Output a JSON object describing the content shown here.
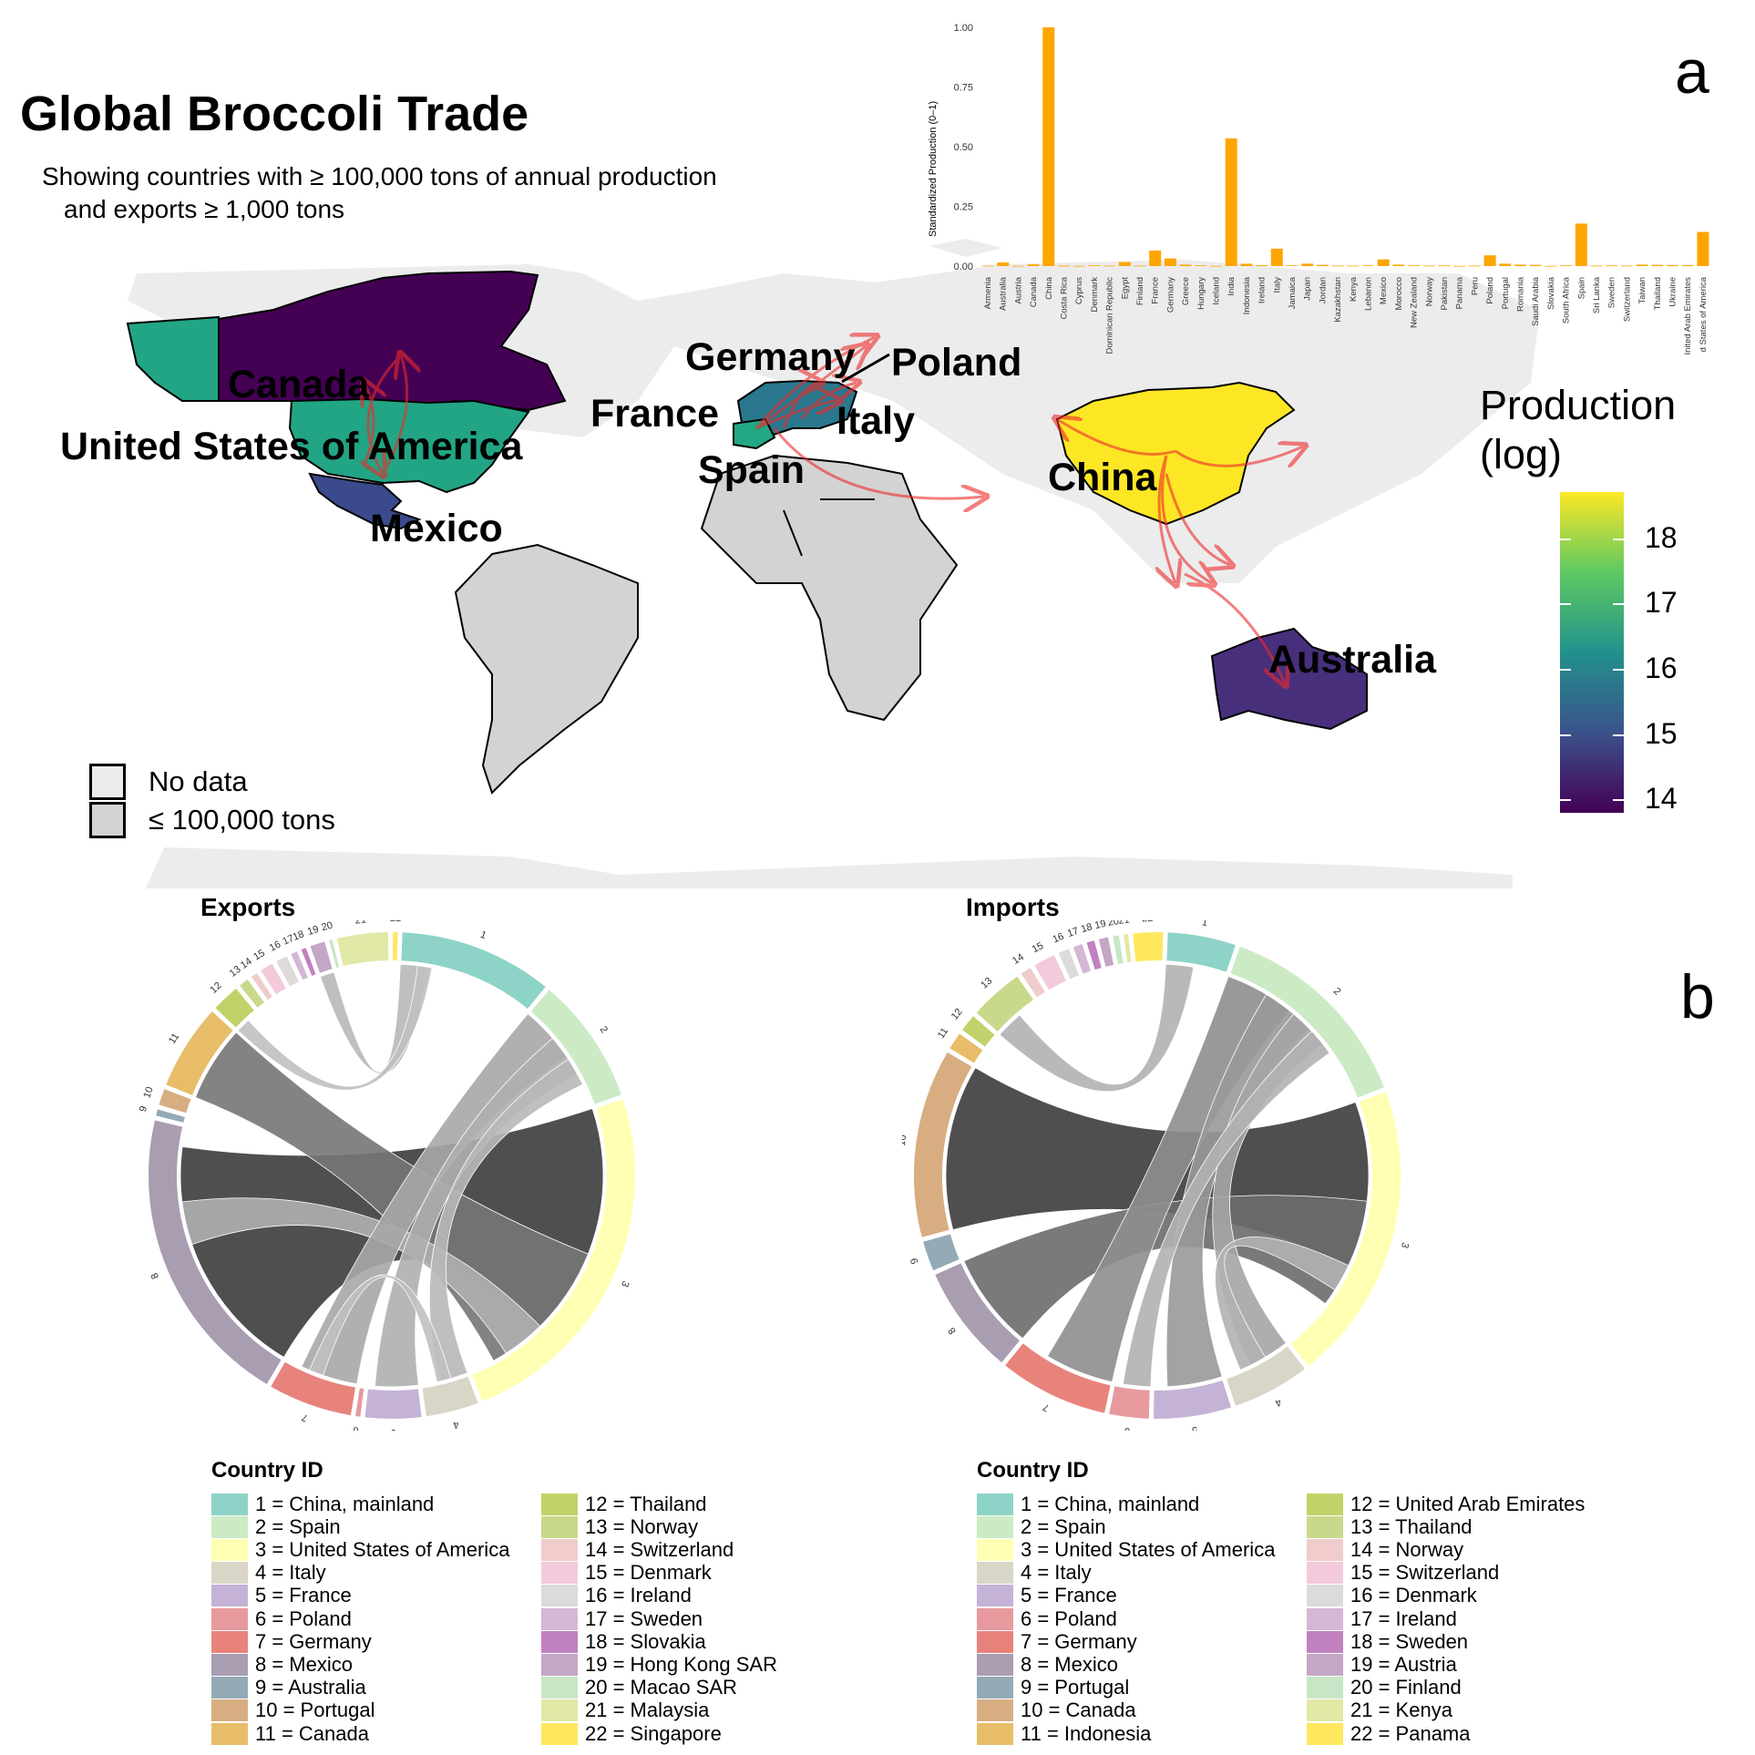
{
  "title": "Global Broccoli Trade",
  "subtitle_line1": "Showing countries with ≥ 100,000 tons of annual production",
  "subtitle_line2": "and exports ≥ 1,000 tons",
  "panel_a": "a",
  "panel_b": "b",
  "map": {
    "country_labels": [
      "Canada",
      "United States of America",
      "Mexico",
      "Germany",
      "Poland",
      "France",
      "Italy",
      "Spain",
      "China",
      "Australia"
    ],
    "legend_title_line1": "Production",
    "legend_title_line2": "(log)",
    "colorbar_ticks": [
      "18",
      "17",
      "16",
      "15",
      "14"
    ],
    "colors": {
      "no_data": "#ececec",
      "low_production": "#d3d3d3",
      "arrows": "#ee2a2a"
    },
    "no_data_label": "No data",
    "low_label": "≤ 100,000 tons"
  },
  "chart_data": [
    {
      "type": "bar",
      "title": "",
      "xlabel": "",
      "ylabel": "Standardized Production (0–1)",
      "ylim": [
        0,
        1
      ],
      "yticks": [
        "0.00",
        "0.25",
        "0.50",
        "0.75",
        "1.00"
      ],
      "bar_color": "#ffa500",
      "categories": [
        "Armenia",
        "Australia",
        "Austria",
        "Canada",
        "China",
        "Costa Rica",
        "Cyprus",
        "Denmark",
        "Dominican Republic",
        "Egypt",
        "Finland",
        "France",
        "Germany",
        "Greece",
        "Hungary",
        "Iceland",
        "India",
        "Indonesia",
        "Ireland",
        "Italy",
        "Jamaica",
        "Japan",
        "Jordan",
        "Kazakhstan",
        "Kenya",
        "Lebanon",
        "Mexico",
        "Morocco",
        "New Zealand",
        "Norway",
        "Pakistan",
        "Panama",
        "Peru",
        "Poland",
        "Portugal",
        "Romania",
        "Saudi Arabia",
        "Slovakia",
        "South Africa",
        "Spain",
        "Sri Lanka",
        "Sweden",
        "Switzerland",
        "Taiwan",
        "Thailand",
        "Ukraine",
        "United Arab Emirates",
        "United States of America"
      ],
      "category_labels_shown": [
        "Armenia",
        "Australia",
        "Austria",
        "Canada",
        "China",
        "Costa Rica",
        "Cyprus",
        "Denmark",
        "Dominican Republic",
        "Egypt",
        "Finland",
        "France",
        "Germany",
        "Greece",
        "Hungary",
        "Iceland",
        "India",
        "Indonesia",
        "Ireland",
        "Italy",
        "Jamaica",
        "Japan",
        "Jordan",
        "Kazakhstan",
        "Kenya",
        "Lebanon",
        "Mexico",
        "Morocco",
        "New Zealand",
        "Norway",
        "Pakistan",
        "Panama",
        "Peru",
        "Poland",
        "Portugal",
        "Romania",
        "Saudi Arabia",
        "Slovakia",
        "South Africa",
        "Spain",
        "Sri Lanka",
        "Sweden",
        "Switzerland",
        "Taiwan",
        "Thailand",
        "Ukraine",
        "Inited Arab Emirates",
        "d States of America"
      ],
      "values": [
        0.002,
        0.015,
        0.001,
        0.007,
        1.0,
        0.002,
        0.001,
        0.003,
        0.002,
        0.017,
        0.002,
        0.065,
        0.032,
        0.006,
        0.003,
        0.001,
        0.535,
        0.01,
        0.004,
        0.073,
        0.003,
        0.01,
        0.005,
        0.002,
        0.002,
        0.003,
        0.028,
        0.006,
        0.003,
        0.002,
        0.003,
        0.001,
        0.002,
        0.045,
        0.01,
        0.006,
        0.005,
        0.001,
        0.003,
        0.178,
        0.002,
        0.003,
        0.002,
        0.006,
        0.005,
        0.004,
        0.004,
        0.143
      ]
    },
    {
      "type": "chord",
      "title": "Exports",
      "sector_ids": [
        "1",
        "2",
        "3",
        "4",
        "5",
        "6",
        "7",
        "8",
        "9",
        "10",
        "11",
        "12",
        "13",
        "14",
        "15",
        "16",
        "17",
        "18",
        "19",
        "20",
        "21",
        "22"
      ],
      "sector_shares": [
        0.094,
        0.078,
        0.22,
        0.033,
        0.035,
        0.004,
        0.052,
        0.184,
        0.005,
        0.011,
        0.053,
        0.018,
        0.007,
        0.005,
        0.009,
        0.008,
        0.005,
        0.004,
        0.01,
        0.003,
        0.032,
        0.004
      ],
      "flows": [
        {
          "from": "8",
          "to": "3",
          "value": 0.17
        },
        {
          "from": "3",
          "to": "11",
          "value": 0.1
        },
        {
          "from": "3",
          "to": "8",
          "value": 0.03
        },
        {
          "from": "2",
          "to": "7",
          "value": 0.04
        },
        {
          "from": "2",
          "to": "5",
          "value": 0.03
        },
        {
          "from": "2",
          "to": "4",
          "value": 0.02
        },
        {
          "from": "1",
          "to": "19",
          "value": 0.02
        },
        {
          "from": "1",
          "to": "12",
          "value": 0.01
        },
        {
          "from": "4",
          "to": "7",
          "value": 0.01
        }
      ]
    },
    {
      "type": "chord",
      "title": "Imports",
      "sector_ids": [
        "1",
        "2",
        "3",
        "4",
        "5",
        "6",
        "7",
        "8",
        "9",
        "10",
        "11",
        "12",
        "13",
        "14",
        "15",
        "16",
        "17",
        "18",
        "19",
        "20",
        "21",
        "22"
      ],
      "sector_shares": [
        0.044,
        0.13,
        0.19,
        0.05,
        0.05,
        0.026,
        0.07,
        0.07,
        0.02,
        0.12,
        0.012,
        0.012,
        0.035,
        0.008,
        0.015,
        0.008,
        0.007,
        0.006,
        0.007,
        0.005,
        0.004,
        0.02
      ],
      "flows": [
        {
          "from": "3",
          "to": "10",
          "value": 0.12
        },
        {
          "from": "8",
          "to": "3",
          "value": 0.08
        },
        {
          "from": "2",
          "to": "7",
          "value": 0.05
        },
        {
          "from": "2",
          "to": "5",
          "value": 0.04
        },
        {
          "from": "2",
          "to": "4",
          "value": 0.03
        },
        {
          "from": "1",
          "to": "13",
          "value": 0.02
        },
        {
          "from": "2",
          "to": "6",
          "value": 0.02
        },
        {
          "from": "4",
          "to": "3",
          "value": 0.02
        }
      ]
    }
  ],
  "legend_title": "Country ID",
  "export_ids": [
    "1 = China, mainland",
    "2 = Spain",
    "3 = United States of America",
    "4 = Italy",
    "5 = France",
    "6 = Poland",
    "7 = Germany",
    "8 = Mexico",
    "9 = Australia",
    "10 = Portugal",
    "11 = Canada",
    "12 = Thailand",
    "13 = Norway",
    "14 = Switzerland",
    "15 = Denmark",
    "16 = Ireland",
    "17 = Sweden",
    "18 = Slovakia",
    "19 = Hong Kong SAR",
    "20 = Macao SAR",
    "21 = Malaysia",
    "22 = Singapore"
  ],
  "import_ids": [
    "1 = China, mainland",
    "2 = Spain",
    "3 = United States of America",
    "4 = Italy",
    "5 = France",
    "6 = Poland",
    "7 = Germany",
    "8 = Mexico",
    "9 = Portugal",
    "10 = Canada",
    "11 = Indonesia",
    "12 = United Arab Emirates",
    "13 = Thailand",
    "14 = Norway",
    "15 = Switzerland",
    "16 = Denmark",
    "17 = Ireland",
    "18 = Sweden",
    "19 = Austria",
    "20 = Finland",
    "21 = Kenya",
    "22 = Panama"
  ],
  "palette": [
    "#8dd3c7",
    "#ccebc5",
    "#ffffb3",
    "#d9d6c7",
    "#c4b3d6",
    "#e8999e",
    "#e8837c",
    "#a99db1",
    "#94aab7",
    "#d8ad82",
    "#e8bd6a",
    "#c2d26a",
    "#c8d98c",
    "#f0cccc",
    "#f2cadc",
    "#dddada",
    "#d3b7d4",
    "#c180c0",
    "#c4a6c5",
    "#c7e6c6",
    "#e2e8a6",
    "#ffe85e"
  ]
}
